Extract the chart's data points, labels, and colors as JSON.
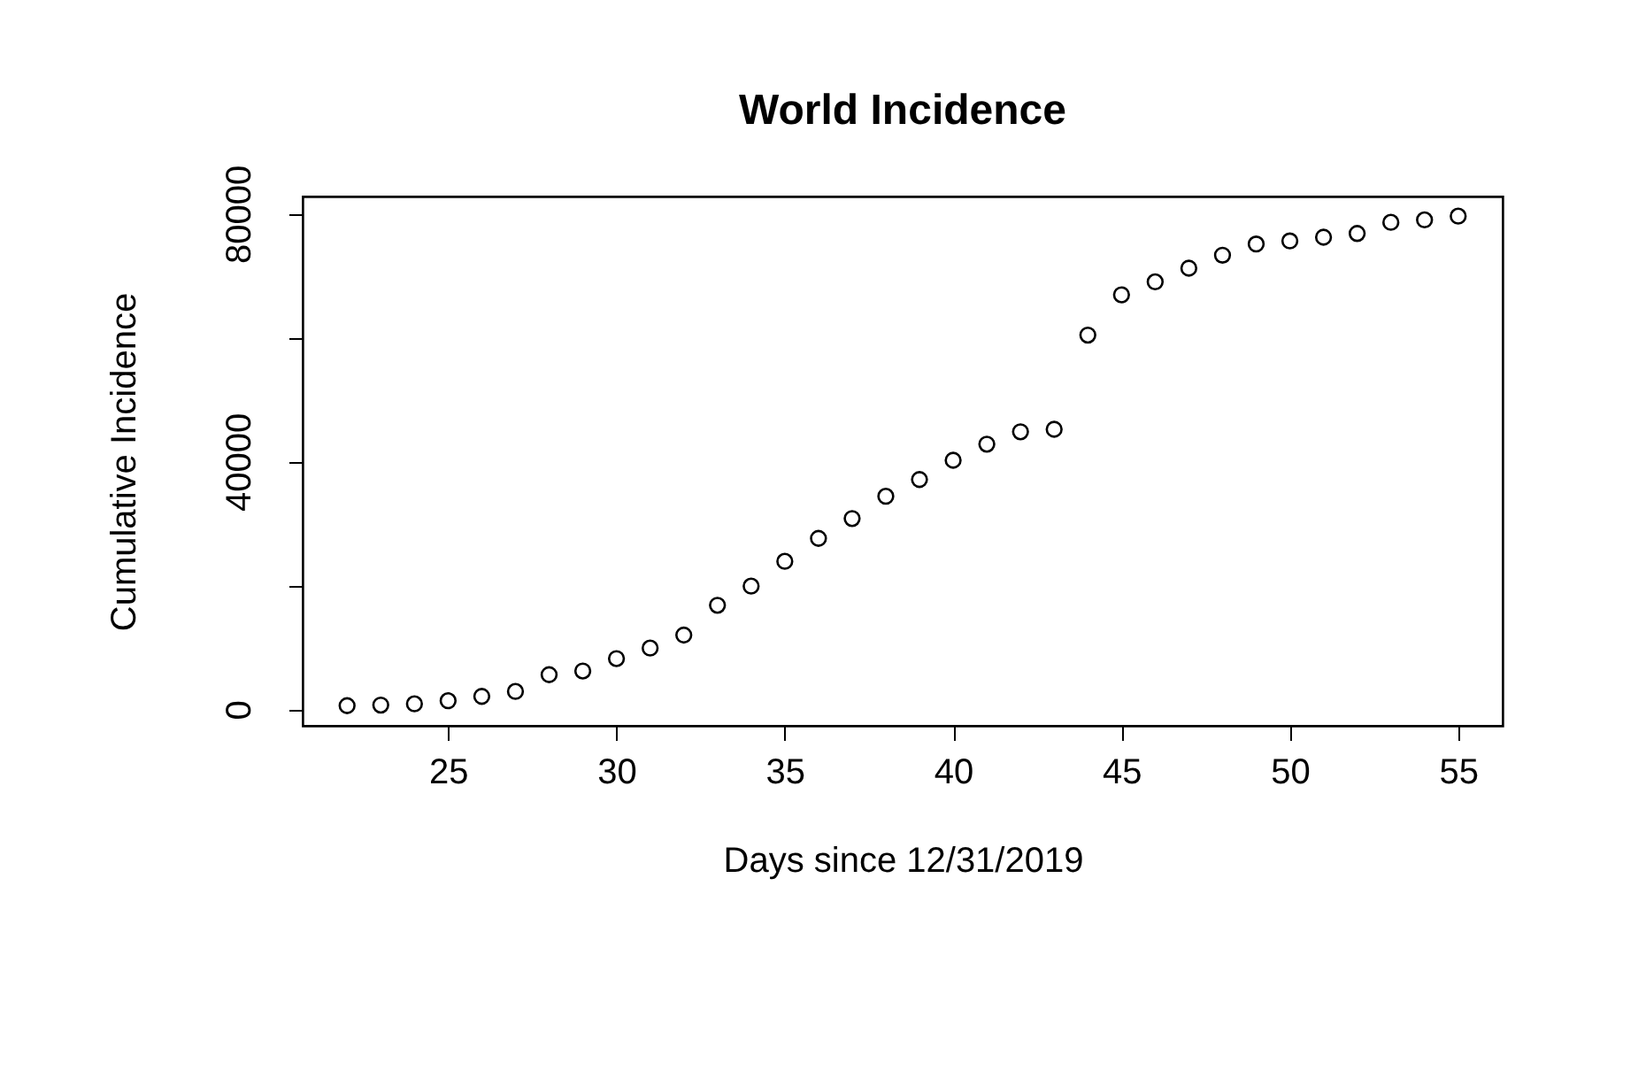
{
  "chart_data": {
    "type": "scatter",
    "title": "World Incidence",
    "xlabel": "Days since 12/31/2019",
    "ylabel": "Cumulative Incidence",
    "x": [
      22,
      23,
      24,
      25,
      26,
      27,
      28,
      29,
      30,
      31,
      32,
      33,
      34,
      35,
      36,
      37,
      38,
      39,
      40,
      41,
      42,
      43,
      44,
      45,
      46,
      47,
      48,
      49,
      50,
      51,
      52,
      53,
      54,
      55
    ],
    "series": [
      {
        "color": "#000000",
        "values": [
          600,
          700,
          900,
          1400,
          2100,
          2900,
          5600,
          6200,
          8200,
          9900,
          12000,
          16800,
          19900,
          23900,
          27600,
          30800,
          34400,
          37100,
          40200,
          42800,
          44800,
          45200,
          60400,
          66900,
          69000,
          71200,
          73300,
          75100,
          75600,
          76200,
          76800,
          78600,
          79000,
          79600
        ]
      }
    ],
    "xlim": [
      20.68,
      56.32
    ],
    "ylim": [
      -2645,
      82769
    ],
    "xticks": [
      25,
      30,
      35,
      40,
      45,
      50,
      55
    ],
    "yticks": [
      0,
      {
        "value": 20000,
        "label": null
      },
      40000,
      {
        "value": 60000,
        "label": null
      },
      80000
    ],
    "marker": "circle",
    "grid": false
  }
}
